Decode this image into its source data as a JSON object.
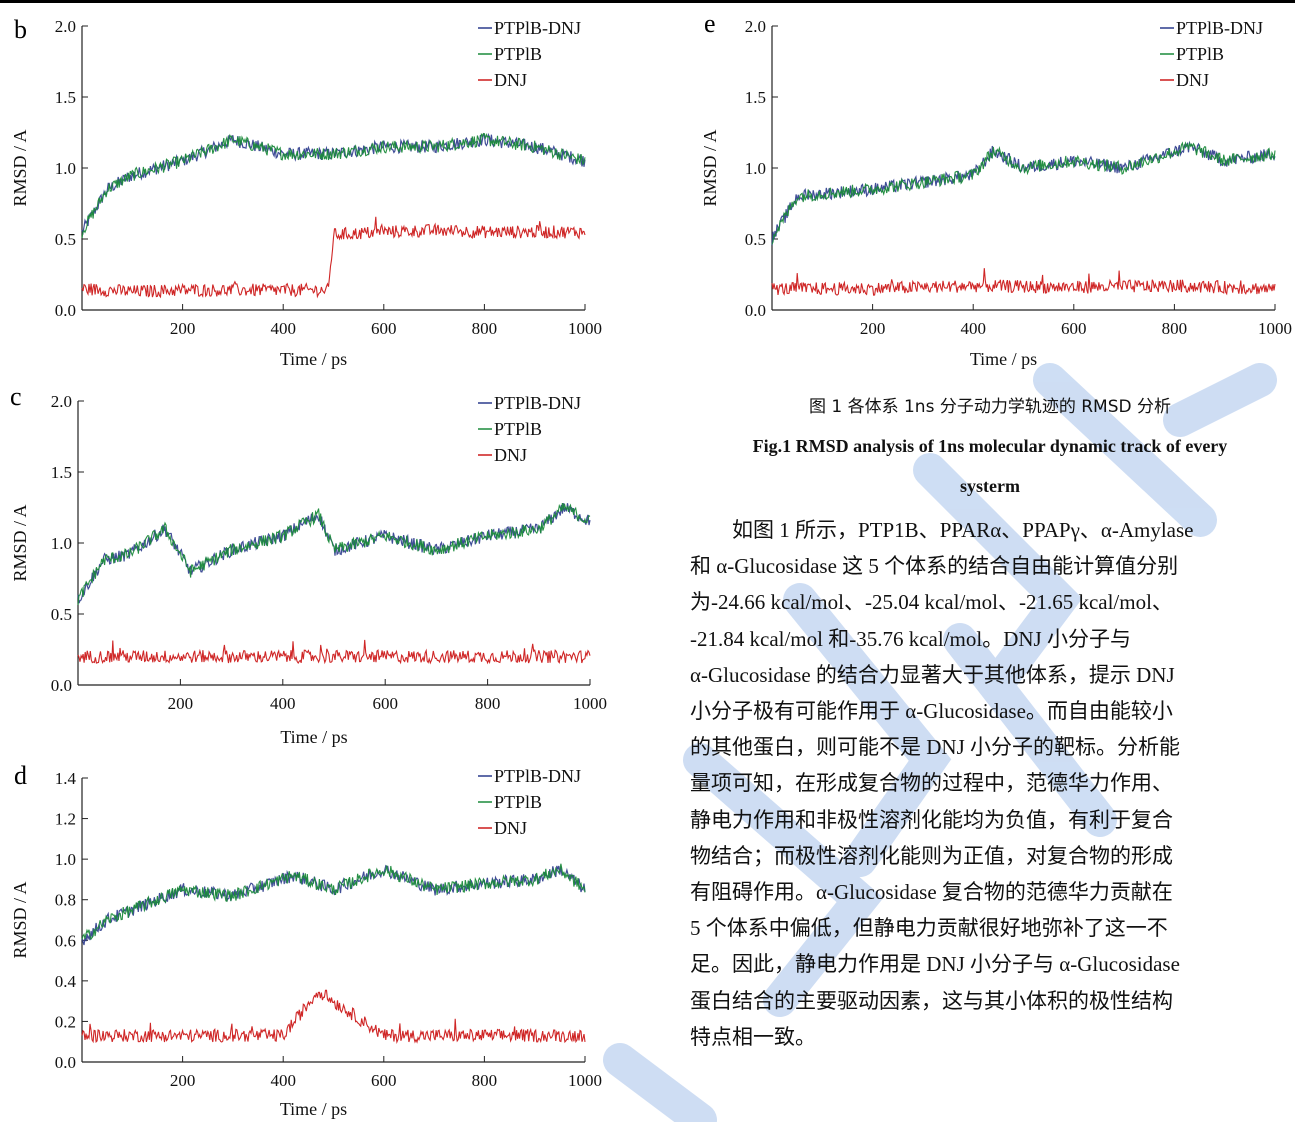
{
  "colors": {
    "complex": "#2b3a8c",
    "protein": "#1a8a3a",
    "ligand": "#cc1a1a"
  },
  "panels": [
    {
      "id": "b",
      "label": "b",
      "xlabel": "Time / ps",
      "ylabel": "RMSD / A",
      "ylim": [
        0,
        2.0
      ],
      "yticks": [
        "0.0",
        "0.5",
        "1.0",
        "1.5",
        "2.0"
      ],
      "xticks": [
        "200",
        "400",
        "600",
        "800",
        "1000"
      ],
      "legend": [
        "PTPlB-DNJ",
        "PTPlB",
        "DNJ"
      ]
    },
    {
      "id": "c",
      "label": "c",
      "xlabel": "Time / ps",
      "ylabel": "RMSD / A",
      "ylim": [
        0,
        2.0
      ],
      "yticks": [
        "0.0",
        "0.5",
        "1.0",
        "1.5",
        "2.0"
      ],
      "xticks": [
        "200",
        "400",
        "600",
        "800",
        "1000"
      ],
      "legend": [
        "PTPlB-DNJ",
        "PTPlB",
        "DNJ"
      ]
    },
    {
      "id": "d",
      "label": "d",
      "xlabel": "Time / ps",
      "ylabel": "RMSD / A",
      "ylim": [
        0,
        1.4
      ],
      "yticks": [
        "0.0",
        "0.2",
        "0.4",
        "0.6",
        "0.8",
        "1.0",
        "1.2",
        "1.4"
      ],
      "xticks": [
        "200",
        "400",
        "600",
        "800",
        "1000"
      ],
      "legend": [
        "PTPlB-DNJ",
        "PTPlB",
        "DNJ"
      ]
    },
    {
      "id": "e",
      "label": "e",
      "xlabel": "Time / ps",
      "ylabel": "RMSD / A",
      "ylim": [
        0,
        2.0
      ],
      "yticks": [
        "0.0",
        "0.5",
        "1.0",
        "1.5",
        "2.0"
      ],
      "xticks": [
        "200",
        "400",
        "600",
        "800",
        "1000"
      ],
      "legend": [
        "PTPlB-DNJ",
        "PTPlB",
        "DNJ"
      ]
    }
  ],
  "chart_data": [
    {
      "type": "line",
      "panel": "b",
      "xlabel": "Time / ps",
      "ylabel": "RMSD / A",
      "xlim": [
        0,
        1000
      ],
      "ylim": [
        0,
        2.0
      ],
      "series": [
        {
          "name": "PTPlB-DNJ",
          "x": [
            0,
            50,
            100,
            200,
            300,
            400,
            500,
            600,
            700,
            800,
            900,
            1000
          ],
          "y": [
            0.55,
            0.85,
            0.95,
            1.05,
            1.2,
            1.1,
            1.1,
            1.15,
            1.15,
            1.2,
            1.15,
            1.05
          ]
        },
        {
          "name": "PTPlB",
          "x": [
            0,
            50,
            100,
            200,
            300,
            400,
            500,
            600,
            700,
            800,
            900,
            1000
          ],
          "y": [
            0.55,
            0.85,
            0.95,
            1.05,
            1.2,
            1.1,
            1.1,
            1.15,
            1.15,
            1.2,
            1.15,
            1.05
          ]
        },
        {
          "name": "DNJ",
          "x": [
            0,
            100,
            200,
            300,
            400,
            490,
            500,
            600,
            700,
            800,
            900,
            1000
          ],
          "y": [
            0.15,
            0.13,
            0.14,
            0.14,
            0.14,
            0.14,
            0.53,
            0.55,
            0.56,
            0.55,
            0.55,
            0.55
          ]
        }
      ]
    },
    {
      "type": "line",
      "panel": "c",
      "xlabel": "Time / ps",
      "ylabel": "RMSD / A",
      "xlim": [
        0,
        1000
      ],
      "ylim": [
        0,
        2.0
      ],
      "series": [
        {
          "name": "PTPlB-DNJ",
          "x": [
            0,
            50,
            100,
            170,
            220,
            300,
            400,
            470,
            500,
            600,
            700,
            800,
            900,
            950,
            1000
          ],
          "y": [
            0.6,
            0.88,
            0.92,
            1.1,
            0.8,
            0.95,
            1.05,
            1.2,
            0.95,
            1.05,
            0.95,
            1.05,
            1.1,
            1.25,
            1.15
          ]
        },
        {
          "name": "PTPlB",
          "x": [
            0,
            50,
            100,
            170,
            220,
            300,
            400,
            470,
            500,
            600,
            700,
            800,
            900,
            950,
            1000
          ],
          "y": [
            0.6,
            0.88,
            0.92,
            1.1,
            0.8,
            0.95,
            1.05,
            1.2,
            0.95,
            1.05,
            0.95,
            1.05,
            1.1,
            1.25,
            1.15
          ]
        },
        {
          "name": "DNJ",
          "x": [
            0,
            200,
            400,
            600,
            800,
            1000
          ],
          "y": [
            0.2,
            0.2,
            0.2,
            0.2,
            0.2,
            0.2
          ]
        }
      ]
    },
    {
      "type": "line",
      "panel": "d",
      "xlabel": "Time / ps",
      "ylabel": "RMSD / A",
      "xlim": [
        0,
        1000
      ],
      "ylim": [
        0,
        1.4
      ],
      "series": [
        {
          "name": "PTPlB-DNJ",
          "x": [
            0,
            50,
            100,
            200,
            300,
            420,
            500,
            600,
            700,
            800,
            900,
            950,
            1000
          ],
          "y": [
            0.6,
            0.7,
            0.75,
            0.85,
            0.82,
            0.92,
            0.85,
            0.95,
            0.85,
            0.88,
            0.9,
            0.95,
            0.85
          ]
        },
        {
          "name": "PTPlB",
          "x": [
            0,
            50,
            100,
            200,
            300,
            420,
            500,
            600,
            700,
            800,
            900,
            950,
            1000
          ],
          "y": [
            0.6,
            0.7,
            0.75,
            0.85,
            0.82,
            0.92,
            0.85,
            0.95,
            0.85,
            0.88,
            0.9,
            0.95,
            0.85
          ]
        },
        {
          "name": "DNJ",
          "x": [
            0,
            200,
            400,
            470,
            600,
            800,
            1000
          ],
          "y": [
            0.13,
            0.13,
            0.13,
            0.35,
            0.13,
            0.13,
            0.13
          ]
        }
      ]
    },
    {
      "type": "line",
      "panel": "e",
      "xlabel": "Time / ps",
      "ylabel": "RMSD / A",
      "xlim": [
        0,
        1000
      ],
      "ylim": [
        0,
        2.0
      ],
      "series": [
        {
          "name": "PTPlB-DNJ",
          "x": [
            0,
            50,
            100,
            200,
            300,
            400,
            440,
            500,
            600,
            700,
            830,
            900,
            1000
          ],
          "y": [
            0.5,
            0.8,
            0.82,
            0.85,
            0.9,
            0.95,
            1.12,
            1.0,
            1.05,
            1.0,
            1.15,
            1.05,
            1.1
          ]
        },
        {
          "name": "PTPlB",
          "x": [
            0,
            50,
            100,
            200,
            300,
            400,
            440,
            500,
            600,
            700,
            830,
            900,
            1000
          ],
          "y": [
            0.5,
            0.8,
            0.82,
            0.85,
            0.9,
            0.95,
            1.12,
            1.0,
            1.05,
            1.0,
            1.15,
            1.05,
            1.1
          ]
        },
        {
          "name": "DNJ",
          "x": [
            0,
            200,
            400,
            600,
            800,
            1000
          ],
          "y": [
            0.15,
            0.15,
            0.17,
            0.16,
            0.17,
            0.15
          ]
        }
      ]
    }
  ],
  "caption": {
    "cn": "图 1  各体系 1ns 分子动力学轨迹的 RMSD 分析",
    "en_line1": "Fig.1 RMSD analysis of 1ns molecular dynamic track of every",
    "en_line2": "systerm"
  },
  "body_lines": [
    "　　如图 1 所示，PTP1B、PPARα、PPAPγ、α-Amylase",
    "和 α-Glucosidase 这 5 个体系的结合自由能计算值分别",
    "为-24.66 kcal/mol、-25.04 kcal/mol、-21.65 kcal/mol、",
    "-21.84  kcal/mol  和-35.76  kcal/mol。DNJ  小分子与",
    "α-Glucosidase 的结合力显著大于其他体系，提示 DNJ",
    "小分子极有可能作用于 α-Glucosidase。而自由能较小",
    "的其他蛋白，则可能不是 DNJ 小分子的靶标。分析能",
    "量项可知，在形成复合物的过程中，范德华力作用、",
    "静电力作用和非极性溶剂化能均为负值，有利于复合",
    "物结合；而极性溶剂化能则为正值，对复合物的形成",
    "有阻碍作用。α-Glucosidase 复合物的范德华力贡献在",
    "5  个体系中偏低，但静电力贡献很好地弥补了这一不",
    "足。因此，静电力作用是 DNJ 小分子与 α-Glucosidase",
    "蛋白结合的主要驱动因素，这与其小体积的极性结构",
    "特点相一致。"
  ]
}
